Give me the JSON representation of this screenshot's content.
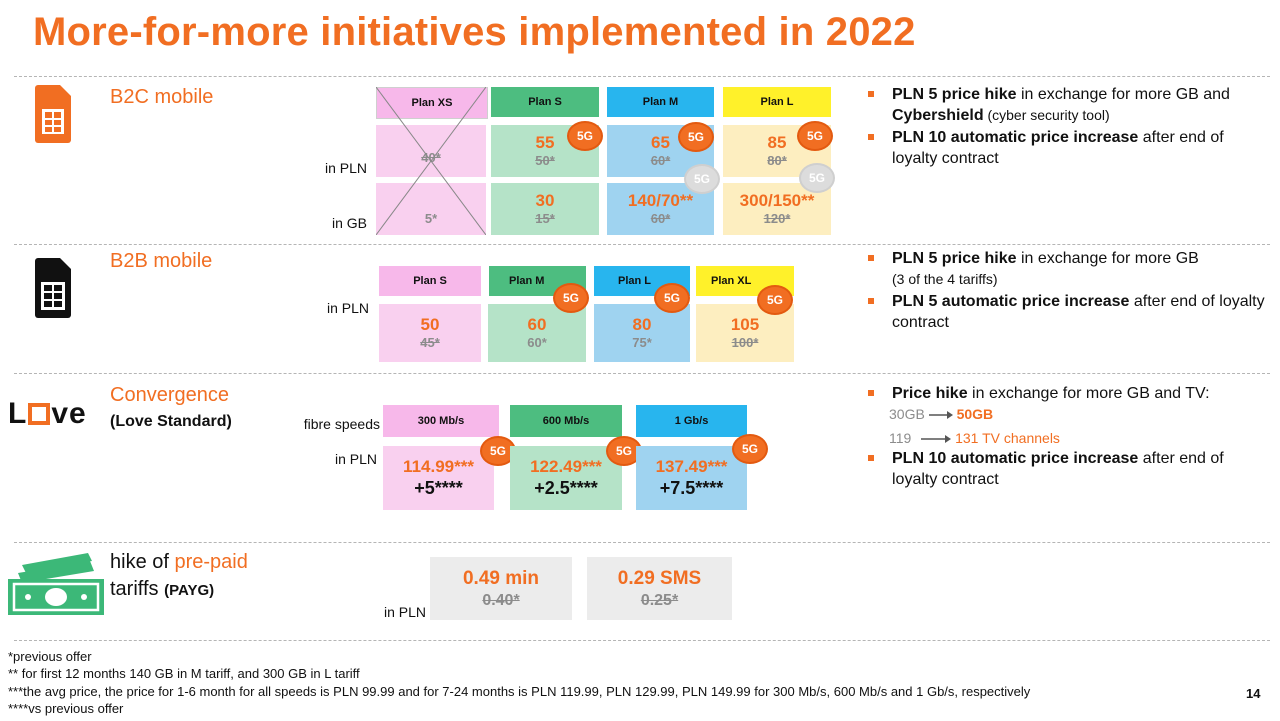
{
  "title": "More-for-more initiatives implemented in 2022",
  "b2c": {
    "label": "B2C mobile",
    "row_pln": "in PLN",
    "row_gb": "in GB",
    "plans": [
      {
        "name": "Plan XS",
        "price": "",
        "old_price": "40*",
        "gb": "",
        "old_gb": "5*",
        "badge": ""
      },
      {
        "name": "Plan S",
        "price": "55",
        "old_price": "50*",
        "gb": "30",
        "old_gb": "15*",
        "badge": "5G"
      },
      {
        "name": "Plan M",
        "price": "65",
        "old_price": "60*",
        "gb": "140/70**",
        "old_gb": "60*",
        "badge": "5G",
        "old_badge": "5G"
      },
      {
        "name": "Plan L",
        "price": "85",
        "old_price": "80*",
        "gb": "300/150**",
        "old_gb": "120*",
        "badge": "5G",
        "old_badge": "5G"
      }
    ],
    "bullets": [
      {
        "bold": "PLN 5 price hike",
        "text": " in exchange for more GB and ",
        "bold2": "Cybershield",
        "small": " (cyber security tool)"
      },
      {
        "bold": "PLN 10 automatic price increase",
        "text": " after end of loyalty contract"
      }
    ]
  },
  "b2b": {
    "label": "B2B mobile",
    "row_pln": "in PLN",
    "plans": [
      {
        "name": "Plan S",
        "price": "50",
        "old_price": "45*",
        "badge": ""
      },
      {
        "name": "Plan M",
        "price": "60",
        "old_price": "60*",
        "badge": "5G"
      },
      {
        "name": "Plan L",
        "price": "80",
        "old_price": "75*",
        "badge": "5G"
      },
      {
        "name": "Plan XL",
        "price": "105",
        "old_price": "100*",
        "badge": "5G"
      }
    ],
    "bullets": [
      {
        "bold": "PLN 5 price hike",
        "text": " in exchange for more GB",
        "small": "(3 of the 4 tariffs)"
      },
      {
        "bold": "PLN 5 automatic price increase",
        "text": " after end of loyalty contract"
      }
    ]
  },
  "convergence": {
    "logo": "Love",
    "label": "Convergence",
    "sublabel": "(Love Standard)",
    "row_speeds": "fibre speeds",
    "row_pln": "in PLN",
    "plans": [
      {
        "name": "300 Mb/s",
        "price": "114.99***",
        "delta": "+5****",
        "badge": "5G"
      },
      {
        "name": "600 Mb/s",
        "price": "122.49***",
        "delta": "+2.5****",
        "badge": "5G"
      },
      {
        "name": "1 Gb/s",
        "price": "137.49***",
        "delta": "+7.5****",
        "badge": "5G"
      }
    ],
    "bullets": {
      "first_bold": "Price hike",
      "first_text": " in exchange for more GB and TV:",
      "gb_old": "30GB",
      "gb_new": "50GB",
      "tv_old": "119",
      "tv_new": "131 TV channels",
      "second_bold": "PLN 10 automatic price increase",
      "second_text": " after end of loyalty contract"
    }
  },
  "payg": {
    "label_plain": "hike of ",
    "label_accent": "pre-paid",
    "label2": "tariffs",
    "label2_small": "(PAYG)",
    "row_pln": "in PLN",
    "items": [
      {
        "price": "0.49 min",
        "old": "0.40*"
      },
      {
        "price": "0.29 SMS",
        "old": "0.25*"
      }
    ]
  },
  "footnotes": [
    "*previous offer",
    "** for first 12 months 140 GB in M tariff, and 300 GB in L tariff",
    "***the avg price, the price for 1-6 month for all speeds is PLN 99.99 and for 7-24 months is PLN 119.99, PLN 129.99, PLN 149.99  for 300 Mb/s, 600 Mb/s and 1 Gb/s, respectively",
    "****vs previous offer"
  ],
  "page_number": "14",
  "colors": {
    "accent": "#f16e22",
    "pink": "#f9d0ef",
    "green": "#b5e3c8",
    "blue": "#9fd3f0",
    "yellow": "#fdeec0",
    "green_hdr": "#4dbd80",
    "blue_hdr": "#28b5ee",
    "yellow_hdr": "#fff12a",
    "pink_hdr": "#f7b8ea"
  },
  "icons": [
    "sim-card-icon",
    "banknotes-icon"
  ]
}
